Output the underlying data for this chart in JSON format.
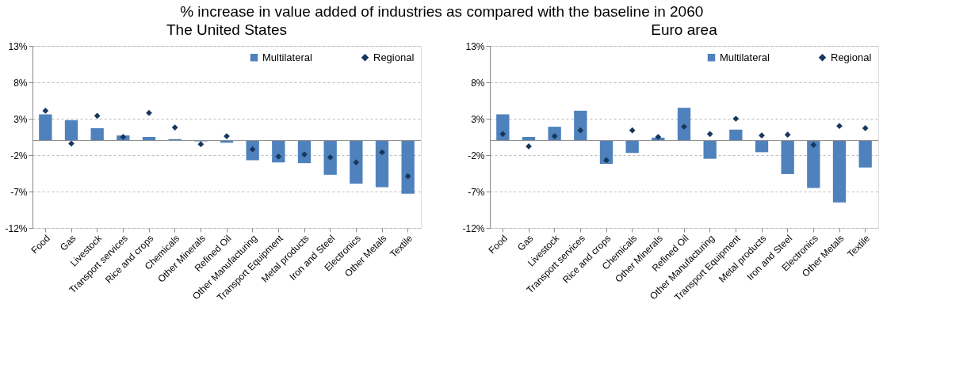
{
  "chart_data": [
    {
      "type": "bar",
      "title": "The United States",
      "annotations": [
        "% increase in value added of industries as compared with the baseline in 2060"
      ],
      "categories": [
        "Food",
        "Gas",
        "Livestock",
        "Transport services",
        "Rice and crops",
        "Chemicals",
        "Other Minerals",
        "Refined Oil",
        "Other Manufacturing",
        "Transport Equipment",
        "Metal products",
        "Iron and Steel",
        "Electronics",
        "Other Metals",
        "Textile"
      ],
      "series": [
        {
          "name": "Multilateral",
          "color": "#4f81bd",
          "values": [
            3.6,
            2.8,
            1.7,
            0.7,
            0.5,
            0.2,
            -0.1,
            -0.3,
            -2.7,
            -3.0,
            -3.1,
            -4.7,
            -5.9,
            -6.4,
            -7.3
          ]
        },
        {
          "name": "Regional",
          "type": "scatter",
          "marker": "diamond",
          "color": "#17375e",
          "values": [
            4.1,
            -0.4,
            3.4,
            0.5,
            3.8,
            1.8,
            -0.5,
            0.6,
            -1.2,
            -2.2,
            -1.9,
            -2.3,
            -3.0,
            -1.6,
            -4.9
          ]
        }
      ],
      "ylim": [
        -12,
        13
      ],
      "yticks": [
        {
          "value": 13,
          "label": "13%"
        },
        {
          "value": 8,
          "label": "8%"
        },
        {
          "value": 3,
          "label": "3%"
        },
        {
          "value": -2,
          "label": "-2%"
        },
        {
          "value": -7,
          "label": "-7%"
        },
        {
          "value": -12,
          "label": "-12%"
        }
      ],
      "grid": "y",
      "legend": "top right"
    },
    {
      "type": "bar",
      "title": "Euro area",
      "categories": [
        "Food",
        "Gas",
        "Livestock",
        "Transport services",
        "Rice and crops",
        "Chemicals",
        "Other Minerals",
        "Refined Oil",
        "Other Manufacturing",
        "Transport Equipment",
        "Metal products",
        "Iron and Steel",
        "Electronics",
        "Other Metals",
        "Textile"
      ],
      "series": [
        {
          "name": "Multilateral",
          "color": "#4f81bd",
          "values": [
            3.6,
            0.5,
            1.9,
            4.1,
            -3.2,
            -1.7,
            0.4,
            4.5,
            -2.5,
            1.5,
            -1.6,
            -4.6,
            -6.5,
            -8.5,
            -3.7
          ]
        },
        {
          "name": "Regional",
          "type": "scatter",
          "marker": "diamond",
          "color": "#17375e",
          "values": [
            0.9,
            -0.8,
            0.6,
            1.4,
            -2.7,
            1.4,
            0.5,
            1.9,
            0.9,
            3.0,
            0.7,
            0.8,
            -0.6,
            2.0,
            1.7
          ]
        }
      ],
      "ylim": [
        -12,
        13
      ],
      "yticks": [
        {
          "value": 13,
          "label": "13%"
        },
        {
          "value": 8,
          "label": "8%"
        },
        {
          "value": 3,
          "label": "3%"
        },
        {
          "value": -2,
          "label": "-2%"
        },
        {
          "value": -7,
          "label": "-7%"
        },
        {
          "value": -12,
          "label": "-12%"
        }
      ],
      "grid": "y",
      "legend": "top right"
    }
  ]
}
